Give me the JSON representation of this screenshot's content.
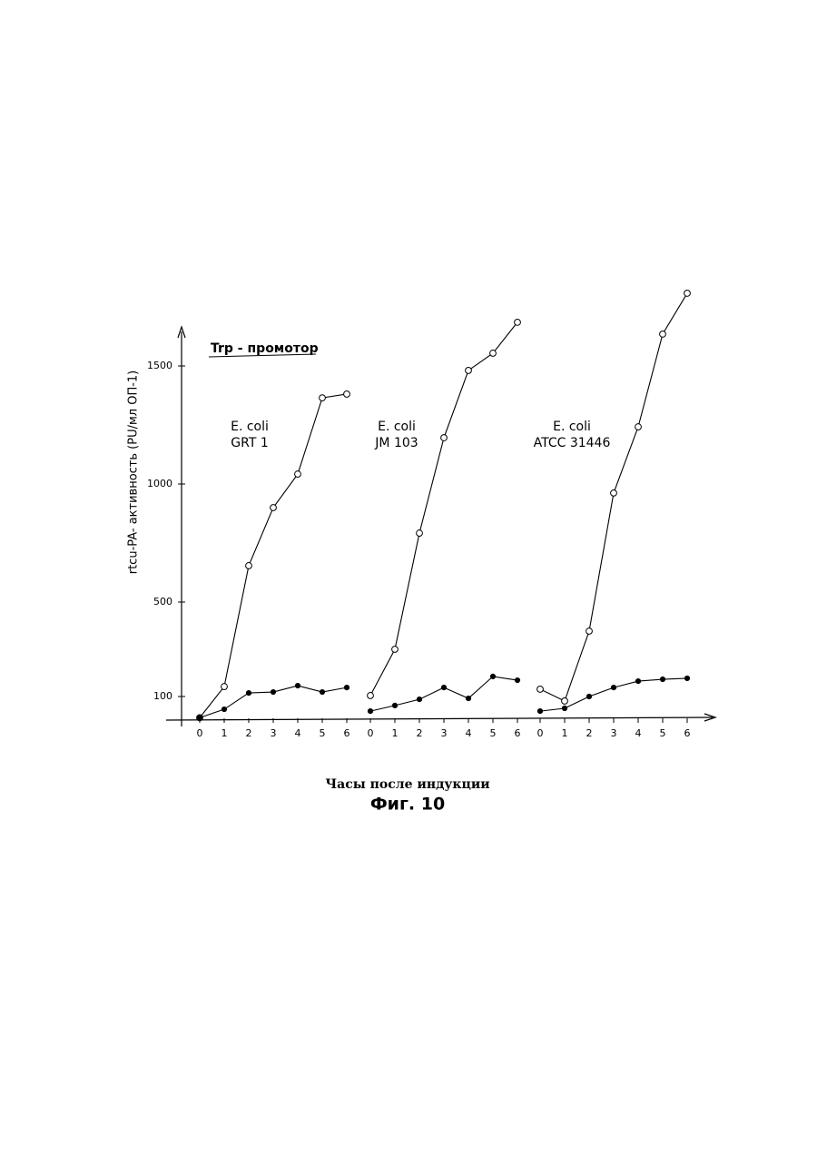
{
  "chart_data": [
    {
      "type": "line",
      "title": "Trp - промотор",
      "ylabel": "rtcu-PA- активность (PU/мл ОП-1)",
      "xlabel": "Часы после индукции",
      "caption": "Фиг. 10",
      "annotation": [
        "E. coli",
        "GRT 1"
      ],
      "ylim": [
        0,
        1650
      ],
      "yticks": [
        100,
        500,
        1000,
        1500
      ],
      "categories": [
        "0",
        "1",
        "2",
        "3",
        "4",
        "5",
        "6"
      ],
      "series": [
        {
          "marker": "open",
          "color": "#000000",
          "values": [
            10,
            142,
            654,
            900,
            1042,
            1365,
            1381
          ]
        },
        {
          "marker": "filled",
          "color": "#000000",
          "values": [
            10,
            46,
            115,
            119,
            146,
            119,
            138
          ]
        }
      ]
    },
    {
      "type": "line",
      "annotation": [
        "E. coli",
        "JM 103"
      ],
      "categories": [
        "0",
        "1",
        "2",
        "3",
        "4",
        "5",
        "6"
      ],
      "series": [
        {
          "marker": "open",
          "color": "#000000",
          "values": [
            104,
            300,
            792,
            1196,
            1481,
            1554,
            1685
          ]
        },
        {
          "marker": "filled",
          "color": "#000000",
          "values": [
            38,
            62,
            88,
            138,
            92,
            185,
            169
          ]
        }
      ]
    },
    {
      "type": "line",
      "annotation": [
        "E. coli",
        "ATCC 31446"
      ],
      "categories": [
        "0",
        "1",
        "2",
        "3",
        "4",
        "5",
        "6"
      ],
      "series": [
        {
          "marker": "open",
          "color": "#000000",
          "values": [
            131,
            81,
            377,
            962,
            1242,
            1635,
            1808
          ]
        },
        {
          "marker": "filled",
          "color": "#000000",
          "values": [
            38,
            50,
            100,
            138,
            165,
            173,
            177
          ]
        }
      ]
    }
  ]
}
